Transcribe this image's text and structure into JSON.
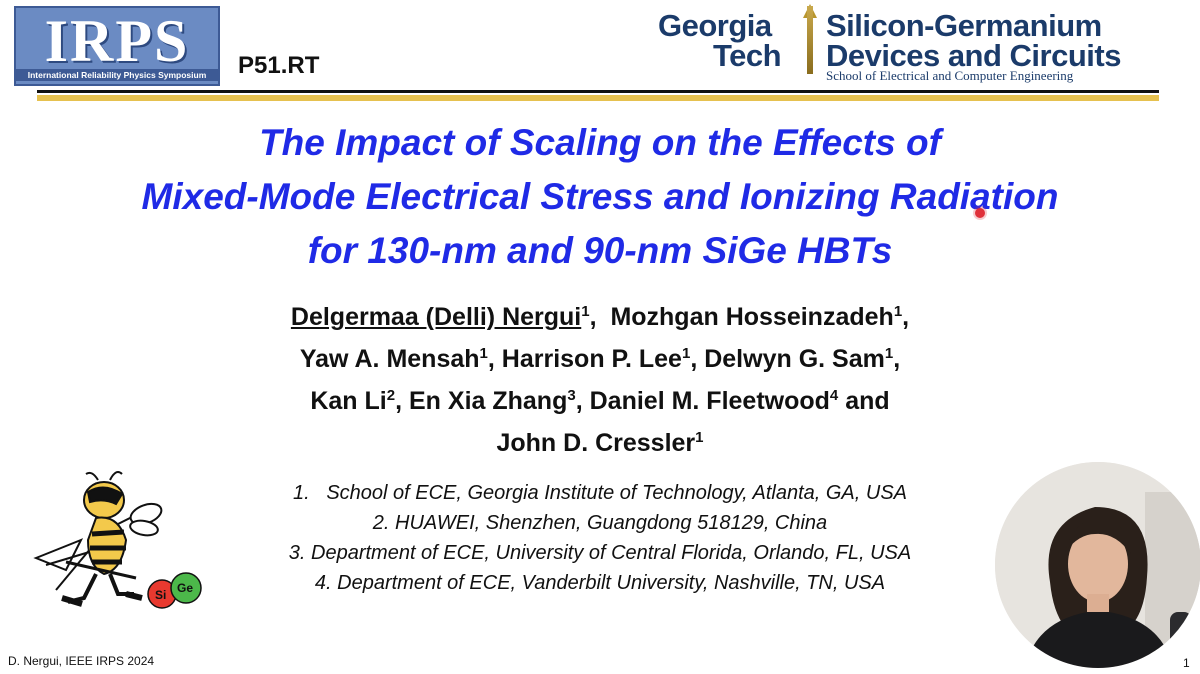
{
  "header": {
    "irps_logo": "IRPS",
    "irps_subtitle": "International Reliability Physics Symposium",
    "paper_code": "P51.RT",
    "gt_line1": "Georgia",
    "gt_line2": "Tech",
    "sige_line1": "Silicon-Germanium",
    "sige_line2": "Devices and Circuits",
    "school": "School of Electrical and Computer Engineering"
  },
  "title": {
    "line1": "The Impact of Scaling on the Effects of",
    "line2": "Mixed-Mode Electrical Stress and Ionizing Radiation",
    "line3": "for 130-nm and 90-nm SiGe HBTs"
  },
  "authors": [
    {
      "name": "Delgermaa (Delli) Nergui",
      "sup": "1"
    },
    {
      "name": "Mozhgan Hosseinzadeh",
      "sup": "1"
    },
    {
      "name": "Yaw A. Mensah",
      "sup": "1"
    },
    {
      "name": "Harrison P. Lee",
      "sup": "1"
    },
    {
      "name": "Delwyn G. Sam",
      "sup": "1"
    },
    {
      "name": "Kan Li",
      "sup": "2"
    },
    {
      "name": "En Xia Zhang",
      "sup": "3"
    },
    {
      "name": "Daniel M. Fleetwood",
      "sup": "4"
    },
    {
      "name": "John D. Cressler",
      "sup": "1"
    }
  ],
  "and_word": "and",
  "affiliations": [
    "1.   School of ECE, Georgia Institute of Technology, Atlanta, GA, USA",
    "2. HUAWEI, Shenzhen, Guangdong 518129, China",
    "3. Department of ECE, University of Central Florida, Orlando, FL, USA",
    "4. Department of ECE, Vanderbilt University, Nashville, TN, USA"
  ],
  "mascot": {
    "label_si": "Si",
    "label_ge": "Ge"
  },
  "footer": {
    "credit": "D. Nergui, IEEE IRPS 2024",
    "page": "1"
  }
}
